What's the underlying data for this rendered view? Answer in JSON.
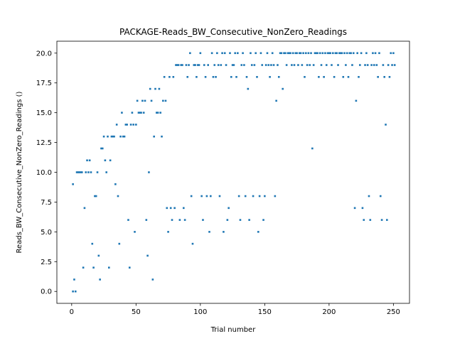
{
  "chart_data": {
    "type": "scatter",
    "title": "PACKAGE-Reads_BW_Consecutive_NonZero_Readings",
    "xlabel": "Trial number",
    "ylabel": "Reads_BW_Consecutive_NonZero_Readings ()",
    "xlim": [
      -11.5,
      262.5
    ],
    "ylim": [
      -1.0,
      21.0
    ],
    "xticks": [
      0,
      50,
      100,
      150,
      200,
      250
    ],
    "yticks": [
      0.0,
      2.5,
      5.0,
      7.5,
      10.0,
      12.5,
      15.0,
      17.5,
      20.0
    ],
    "x_tick_labels": [
      "0",
      "50",
      "100",
      "150",
      "200",
      "250"
    ],
    "y_tick_labels": [
      "0.0",
      "2.5",
      "5.0",
      "7.5",
      "10.0",
      "12.5",
      "15.0",
      "17.5",
      "20.0"
    ],
    "grid": false,
    "marker_color": "#1f77b4",
    "series": [
      {
        "points": [
          [
            1,
            9
          ],
          [
            1,
            0
          ],
          [
            2,
            1
          ],
          [
            3,
            0
          ],
          [
            4,
            10
          ],
          [
            5,
            10
          ],
          [
            6,
            10
          ],
          [
            7,
            10
          ],
          [
            8,
            10
          ],
          [
            9,
            2
          ],
          [
            10,
            7
          ],
          [
            11,
            10
          ],
          [
            12,
            11
          ],
          [
            13,
            10
          ],
          [
            14,
            11
          ],
          [
            15,
            10
          ],
          [
            16,
            4
          ],
          [
            17,
            2
          ],
          [
            18,
            8
          ],
          [
            19,
            8
          ],
          [
            20,
            10
          ],
          [
            21,
            3
          ],
          [
            22,
            1
          ],
          [
            23,
            12
          ],
          [
            24,
            12
          ],
          [
            25,
            13
          ],
          [
            26,
            11
          ],
          [
            27,
            10
          ],
          [
            28,
            13
          ],
          [
            29,
            2
          ],
          [
            30,
            11
          ],
          [
            31,
            13
          ],
          [
            32,
            13
          ],
          [
            33,
            13
          ],
          [
            34,
            9
          ],
          [
            35,
            14
          ],
          [
            36,
            8
          ],
          [
            37,
            4
          ],
          [
            38,
            13
          ],
          [
            39,
            15
          ],
          [
            40,
            13
          ],
          [
            41,
            13
          ],
          [
            42,
            14
          ],
          [
            43,
            14
          ],
          [
            44,
            6
          ],
          [
            45,
            2
          ],
          [
            46,
            14
          ],
          [
            47,
            15
          ],
          [
            48,
            14
          ],
          [
            49,
            5
          ],
          [
            50,
            14
          ],
          [
            51,
            16
          ],
          [
            52,
            15
          ],
          [
            53,
            15
          ],
          [
            54,
            15
          ],
          [
            55,
            16
          ],
          [
            56,
            15
          ],
          [
            57,
            16
          ],
          [
            58,
            6
          ],
          [
            59,
            3
          ],
          [
            60,
            10
          ],
          [
            61,
            17
          ],
          [
            62,
            16
          ],
          [
            63,
            1
          ],
          [
            64,
            13
          ],
          [
            65,
            17
          ],
          [
            66,
            15
          ],
          [
            67,
            15
          ],
          [
            68,
            17
          ],
          [
            69,
            15
          ],
          [
            70,
            13
          ],
          [
            71,
            16
          ],
          [
            72,
            18
          ],
          [
            73,
            16
          ],
          [
            74,
            7
          ],
          [
            75,
            5
          ],
          [
            76,
            18
          ],
          [
            77,
            7
          ],
          [
            78,
            6
          ],
          [
            79,
            18
          ],
          [
            80,
            7
          ],
          [
            81,
            19
          ],
          [
            82,
            19
          ],
          [
            83,
            19
          ],
          [
            84,
            6
          ],
          [
            85,
            19
          ],
          [
            86,
            19
          ],
          [
            87,
            7
          ],
          [
            88,
            6
          ],
          [
            89,
            19
          ],
          [
            90,
            18
          ],
          [
            91,
            19
          ],
          [
            92,
            20
          ],
          [
            93,
            8
          ],
          [
            94,
            4
          ],
          [
            95,
            19
          ],
          [
            96,
            19
          ],
          [
            97,
            18
          ],
          [
            98,
            19
          ],
          [
            99,
            19
          ],
          [
            100,
            20
          ],
          [
            101,
            8
          ],
          [
            102,
            6
          ],
          [
            103,
            19
          ],
          [
            104,
            18
          ],
          [
            105,
            8
          ],
          [
            106,
            19
          ],
          [
            107,
            5
          ],
          [
            108,
            8
          ],
          [
            109,
            20
          ],
          [
            110,
            18
          ],
          [
            111,
            19
          ],
          [
            112,
            18
          ],
          [
            113,
            20
          ],
          [
            114,
            19
          ],
          [
            115,
            8
          ],
          [
            116,
            19
          ],
          [
            117,
            20
          ],
          [
            118,
            5
          ],
          [
            119,
            20
          ],
          [
            120,
            19
          ],
          [
            121,
            6
          ],
          [
            122,
            7
          ],
          [
            123,
            20
          ],
          [
            124,
            18
          ],
          [
            125,
            19
          ],
          [
            126,
            19
          ],
          [
            127,
            20
          ],
          [
            128,
            18
          ],
          [
            129,
            20
          ],
          [
            130,
            8
          ],
          [
            131,
            6
          ],
          [
            132,
            19
          ],
          [
            133,
            20
          ],
          [
            134,
            19
          ],
          [
            135,
            8
          ],
          [
            136,
            18
          ],
          [
            137,
            17
          ],
          [
            138,
            6
          ],
          [
            139,
            20
          ],
          [
            140,
            19
          ],
          [
            141,
            8
          ],
          [
            142,
            19
          ],
          [
            143,
            20
          ],
          [
            144,
            18
          ],
          [
            145,
            5
          ],
          [
            146,
            8
          ],
          [
            147,
            20
          ],
          [
            148,
            19
          ],
          [
            149,
            6
          ],
          [
            150,
            8
          ],
          [
            151,
            19
          ],
          [
            152,
            20
          ],
          [
            153,
            19
          ],
          [
            154,
            18
          ],
          [
            155,
            19
          ],
          [
            156,
            20
          ],
          [
            157,
            19
          ],
          [
            158,
            8
          ],
          [
            159,
            16
          ],
          [
            160,
            19
          ],
          [
            161,
            18
          ],
          [
            162,
            20
          ],
          [
            163,
            20
          ],
          [
            164,
            17
          ],
          [
            165,
            20
          ],
          [
            166,
            20
          ],
          [
            167,
            19
          ],
          [
            168,
            20
          ],
          [
            169,
            20
          ],
          [
            170,
            20
          ],
          [
            171,
            19
          ],
          [
            172,
            20
          ],
          [
            173,
            19
          ],
          [
            174,
            20
          ],
          [
            175,
            20
          ],
          [
            176,
            19
          ],
          [
            177,
            20
          ],
          [
            178,
            20
          ],
          [
            179,
            19
          ],
          [
            180,
            20
          ],
          [
            181,
            18
          ],
          [
            182,
            20
          ],
          [
            183,
            19
          ],
          [
            184,
            20
          ],
          [
            185,
            19
          ],
          [
            186,
            20
          ],
          [
            187,
            12
          ],
          [
            188,
            19
          ],
          [
            189,
            20
          ],
          [
            190,
            20
          ],
          [
            191,
            20
          ],
          [
            192,
            18
          ],
          [
            193,
            20
          ],
          [
            194,
            19
          ],
          [
            195,
            20
          ],
          [
            196,
            18
          ],
          [
            197,
            20
          ],
          [
            198,
            19
          ],
          [
            199,
            20
          ],
          [
            200,
            20
          ],
          [
            201,
            20
          ],
          [
            202,
            19
          ],
          [
            203,
            20
          ],
          [
            204,
            18
          ],
          [
            205,
            20
          ],
          [
            206,
            20
          ],
          [
            207,
            19
          ],
          [
            208,
            20
          ],
          [
            209,
            20
          ],
          [
            210,
            20
          ],
          [
            211,
            18
          ],
          [
            212,
            20
          ],
          [
            213,
            19
          ],
          [
            214,
            20
          ],
          [
            215,
            18
          ],
          [
            216,
            20
          ],
          [
            217,
            20
          ],
          [
            218,
            19
          ],
          [
            219,
            20
          ],
          [
            220,
            7
          ],
          [
            221,
            16
          ],
          [
            222,
            20
          ],
          [
            223,
            18
          ],
          [
            224,
            19
          ],
          [
            225,
            20
          ],
          [
            226,
            7
          ],
          [
            227,
            6
          ],
          [
            228,
            19
          ],
          [
            229,
            20
          ],
          [
            230,
            19
          ],
          [
            231,
            8
          ],
          [
            232,
            6
          ],
          [
            233,
            19
          ],
          [
            234,
            20
          ],
          [
            235,
            19
          ],
          [
            236,
            20
          ],
          [
            237,
            19
          ],
          [
            238,
            18
          ],
          [
            239,
            20
          ],
          [
            240,
            8
          ],
          [
            241,
            6
          ],
          [
            242,
            19
          ],
          [
            243,
            18
          ],
          [
            244,
            14
          ],
          [
            245,
            6
          ],
          [
            246,
            19
          ],
          [
            247,
            18
          ],
          [
            248,
            20
          ],
          [
            249,
            19
          ],
          [
            250,
            20
          ],
          [
            251,
            19
          ]
        ]
      }
    ]
  }
}
